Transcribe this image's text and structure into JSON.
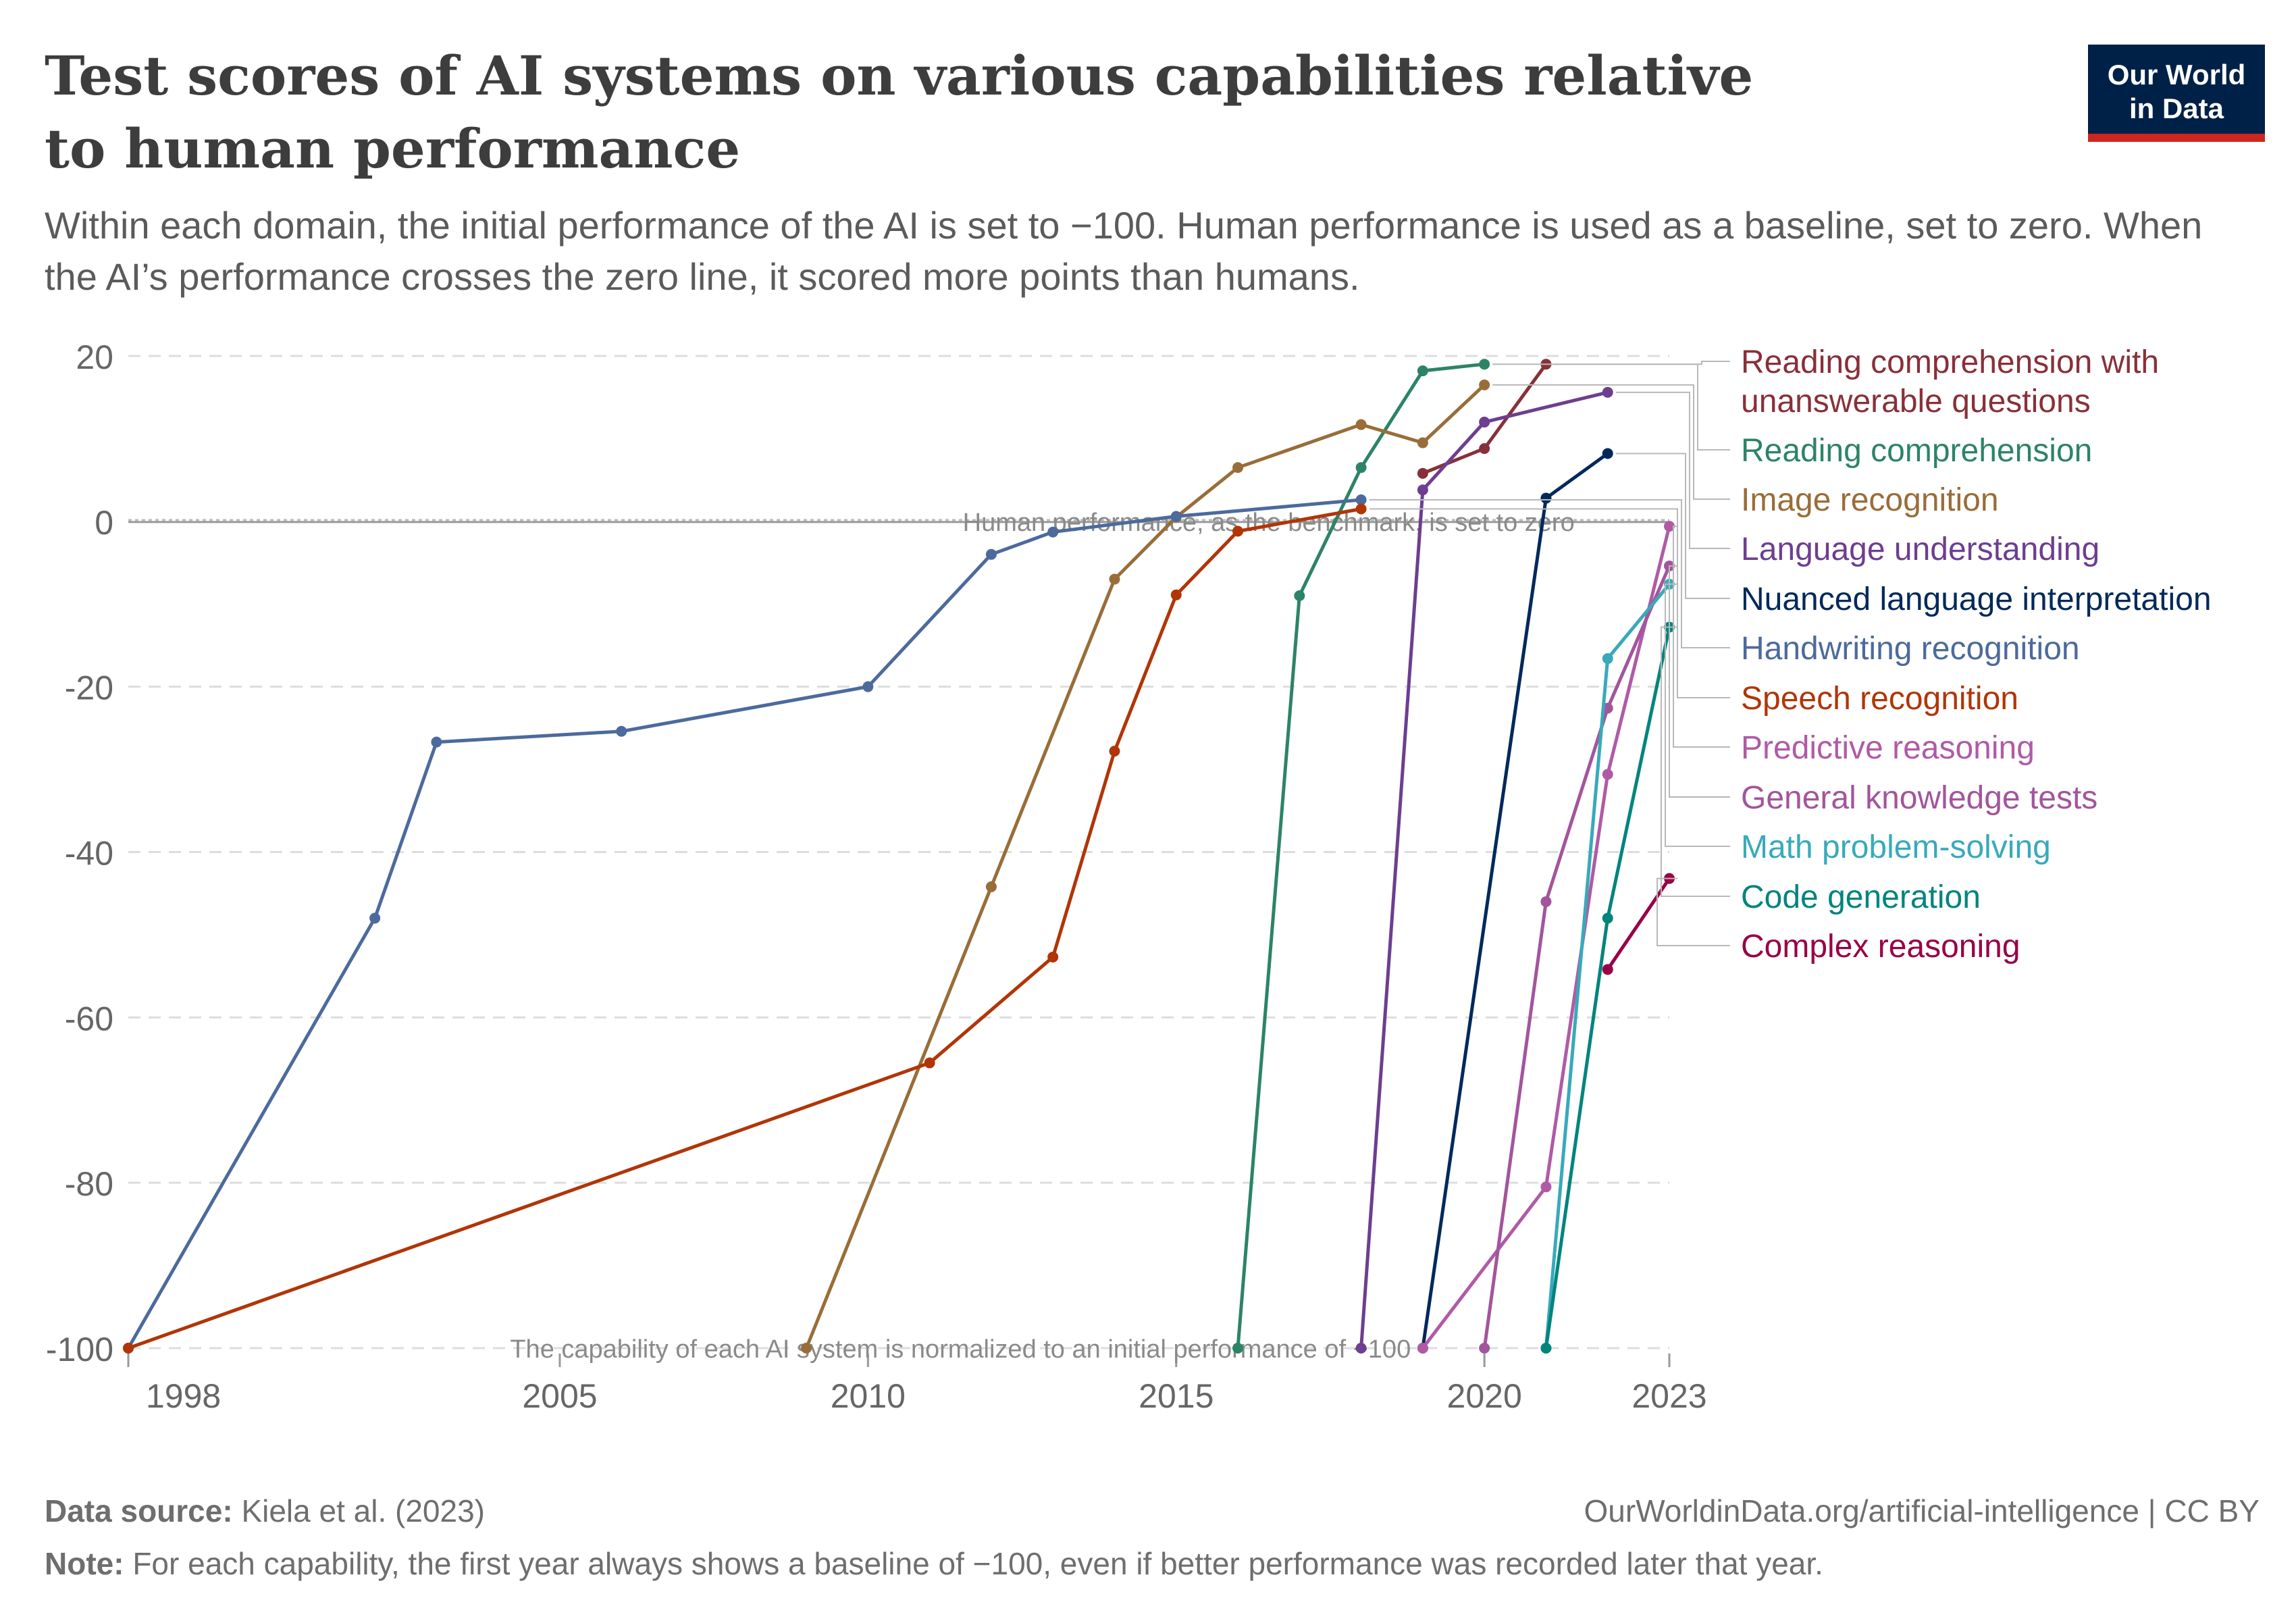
{
  "header": {
    "title": "Test scores of AI systems on various capabilities relative to human performance",
    "subtitle": "Within each domain, the initial performance of the AI is set to −100. Human performance is used as a baseline, set to zero. When the AI’s performance crosses the zero line, it scored more points than humans.",
    "logo_line1": "Our World",
    "logo_line2": "in Data"
  },
  "footer": {
    "source_label": "Data source:",
    "source_text": "Kiela et al. (2023)",
    "url_text": "OurWorldinData.org/artificial-intelligence | CC BY",
    "note_label": "Note:",
    "note_text": "For each capability, the first year always shows a baseline of −100, even if better performance was recorded later that year."
  },
  "chart_data": {
    "type": "line",
    "title": "Test scores of AI systems on various capabilities relative to human performance",
    "xlim": [
      1998,
      2023
    ],
    "ylim": [
      -100,
      20
    ],
    "x_ticks": [
      1998,
      2005,
      2010,
      2015,
      2020,
      2023
    ],
    "y_ticks": [
      20,
      0,
      -20,
      -40,
      -60,
      -80,
      -100
    ],
    "grid": "horizontal dashed",
    "legend": "right, line end labels",
    "annotations": [
      {
        "text": "Human performance, as the benchmark, is set to zero",
        "x": 2016.5,
        "y": 0
      },
      {
        "text": "The capability of each AI system is normalized to an initial performance of −100",
        "x": 2011.5,
        "y": -100
      }
    ],
    "series": [
      {
        "name": "Reading comprehension with unanswerable questions",
        "color": "#883039",
        "points": [
          [
            2019,
            5.8
          ],
          [
            2020,
            8.8
          ],
          [
            2021,
            19.0
          ]
        ]
      },
      {
        "name": "Reading comprehension",
        "color": "#2c8465",
        "points": [
          [
            2016,
            -100
          ],
          [
            2017,
            -9.0
          ],
          [
            2018,
            6.5
          ],
          [
            2019,
            18.2
          ],
          [
            2020,
            19.0
          ]
        ]
      },
      {
        "name": "Image recognition",
        "color": "#996d39",
        "points": [
          [
            2009,
            -100
          ],
          [
            2012,
            -44.2
          ],
          [
            2014,
            -7.0
          ],
          [
            2015,
            0.5
          ],
          [
            2016,
            6.5
          ],
          [
            2018,
            11.7
          ],
          [
            2019,
            9.5
          ],
          [
            2020,
            16.5
          ]
        ]
      },
      {
        "name": "Language understanding",
        "color": "#6d3e91",
        "points": [
          [
            2018,
            -100
          ],
          [
            2019,
            3.8
          ],
          [
            2020,
            12.0
          ],
          [
            2022,
            15.6
          ]
        ]
      },
      {
        "name": "Nuanced language interpretation",
        "color": "#00295b",
        "points": [
          [
            2019,
            -100
          ],
          [
            2021,
            2.8
          ],
          [
            2022,
            8.2
          ]
        ]
      },
      {
        "name": "Handwriting recognition",
        "color": "#4c6a9c",
        "points": [
          [
            1998,
            -100
          ],
          [
            2002,
            -48.0
          ],
          [
            2003,
            -26.7
          ],
          [
            2006,
            -25.4
          ],
          [
            2010,
            -20.0
          ],
          [
            2012,
            -4.0
          ],
          [
            2013,
            -1.3
          ],
          [
            2015,
            0.6
          ],
          [
            2018,
            2.6
          ]
        ]
      },
      {
        "name": "Speech recognition",
        "color": "#b13507",
        "points": [
          [
            1998,
            -100
          ],
          [
            2011,
            -65.5
          ],
          [
            2013,
            -52.7
          ],
          [
            2014,
            -27.8
          ],
          [
            2015,
            -8.9
          ],
          [
            2016,
            -1.2
          ],
          [
            2018,
            1.5
          ]
        ]
      },
      {
        "name": "Predictive reasoning",
        "color": "#b05aa6",
        "points": [
          [
            2019,
            -100
          ],
          [
            2021,
            -80.5
          ],
          [
            2022,
            -30.6
          ],
          [
            2023,
            -0.6
          ]
        ]
      },
      {
        "name": "General knowledge tests",
        "color": "#a2559c",
        "points": [
          [
            2020,
            -100
          ],
          [
            2021,
            -46.0
          ],
          [
            2022,
            -22.6
          ],
          [
            2023,
            -5.4
          ]
        ]
      },
      {
        "name": "Math problem-solving",
        "color": "#38aaba",
        "points": [
          [
            2021,
            -100
          ],
          [
            2022,
            -16.6
          ],
          [
            2023,
            -7.6
          ]
        ]
      },
      {
        "name": "Code generation",
        "color": "#00847e",
        "points": [
          [
            2021,
            -100
          ],
          [
            2022,
            -48.0
          ],
          [
            2023,
            -12.8
          ]
        ]
      },
      {
        "name": "Complex reasoning",
        "color": "#970046",
        "points": [
          [
            2022,
            -54.2
          ],
          [
            2023,
            -43.2
          ]
        ]
      }
    ]
  }
}
